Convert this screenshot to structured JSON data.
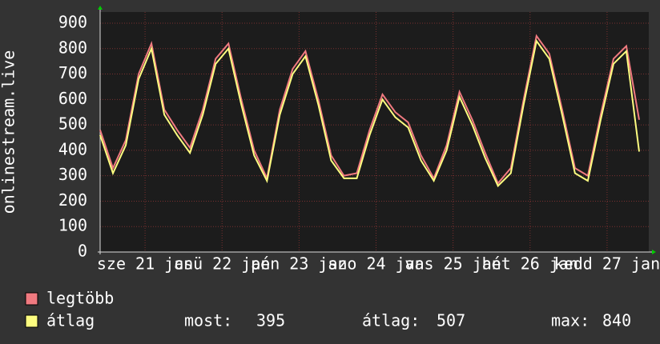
{
  "chart_data": {
    "type": "line",
    "y_label": "onlinestream.live",
    "x": [
      0,
      4,
      8,
      12,
      16,
      20,
      24,
      28,
      32,
      36,
      40,
      44,
      48,
      52,
      56,
      60,
      64,
      68,
      72,
      76,
      80,
      84,
      88,
      92,
      96,
      100,
      104,
      108,
      112,
      116,
      120,
      124,
      128,
      132,
      136,
      140,
      144,
      148,
      152,
      156,
      160,
      164,
      168
    ],
    "xlim": [
      0,
      171
    ],
    "xticks": [
      {
        "value": 14,
        "label": "sze 21 jan"
      },
      {
        "value": 38,
        "label": "csü 22 jan"
      },
      {
        "value": 62,
        "label": "pén 23 jan"
      },
      {
        "value": 86,
        "label": "szo 24 jan"
      },
      {
        "value": 110,
        "label": "vas 25 jan"
      },
      {
        "value": 134,
        "label": "hét 26 jan"
      },
      {
        "value": 158,
        "label": "kedd 27 jan"
      }
    ],
    "ylim": [
      0,
      900
    ],
    "yticks": [
      0,
      100,
      200,
      300,
      400,
      500,
      600,
      700,
      800,
      900
    ],
    "grid": true,
    "series": [
      {
        "name": "legtöbb",
        "color": "#f07a80",
        "values": [
          480,
          330,
          440,
          700,
          820,
          560,
          480,
          410,
          560,
          760,
          820,
          600,
          400,
          290,
          560,
          720,
          790,
          600,
          380,
          300,
          310,
          480,
          620,
          550,
          510,
          380,
          290,
          420,
          630,
          520,
          390,
          270,
          330,
          600,
          850,
          780,
          560,
          330,
          300,
          540,
          760,
          810,
          520
        ]
      },
      {
        "name": "átlag",
        "color": "#fdfd80",
        "values": [
          460,
          310,
          420,
          680,
          800,
          540,
          460,
          390,
          540,
          740,
          800,
          580,
          380,
          280,
          540,
          700,
          770,
          580,
          360,
          290,
          290,
          460,
          600,
          530,
          490,
          360,
          280,
          400,
          610,
          500,
          370,
          260,
          310,
          580,
          830,
          760,
          540,
          310,
          280,
          520,
          740,
          790,
          395
        ]
      }
    ],
    "stats": [
      {
        "label": "most:",
        "value": 395
      },
      {
        "label": "átlag:",
        "value": 507
      },
      {
        "label": "max:",
        "value": 840
      }
    ]
  }
}
